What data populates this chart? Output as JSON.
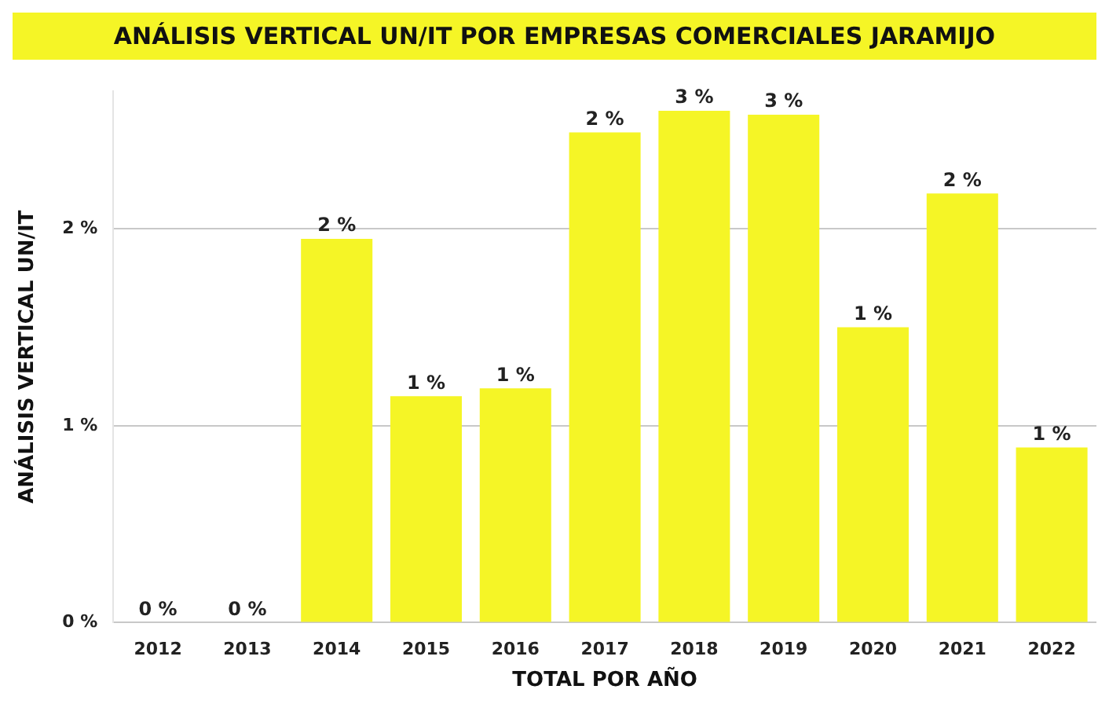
{
  "chart_data": {
    "type": "bar",
    "title": "ANÁLISIS VERTICAL UN/IT POR EMPRESAS COMERCIALES JARAMIJO",
    "xlabel": "TOTAL POR AÑO",
    "ylabel": "ANÁLISIS VERTICAL UN/IT",
    "categories": [
      "2012",
      "2013",
      "2014",
      "2015",
      "2016",
      "2017",
      "2018",
      "2019",
      "2020",
      "2021",
      "2022"
    ],
    "values": [
      0,
      0,
      1.95,
      1.15,
      1.19,
      2.49,
      2.6,
      2.58,
      1.5,
      2.18,
      0.89
    ],
    "value_labels": [
      "0 %",
      "0 %",
      "2 %",
      "1 %",
      "1 %",
      "2 %",
      "3 %",
      "3 %",
      "1 %",
      "2 %",
      "1 %"
    ],
    "color": "#f5f526",
    "ylim": [
      0,
      2.7
    ],
    "yticks": [
      {
        "value": 0,
        "label": "0 %"
      },
      {
        "value": 1,
        "label": "1 %"
      },
      {
        "value": 2,
        "label": "2 %"
      }
    ],
    "grid": "y"
  }
}
